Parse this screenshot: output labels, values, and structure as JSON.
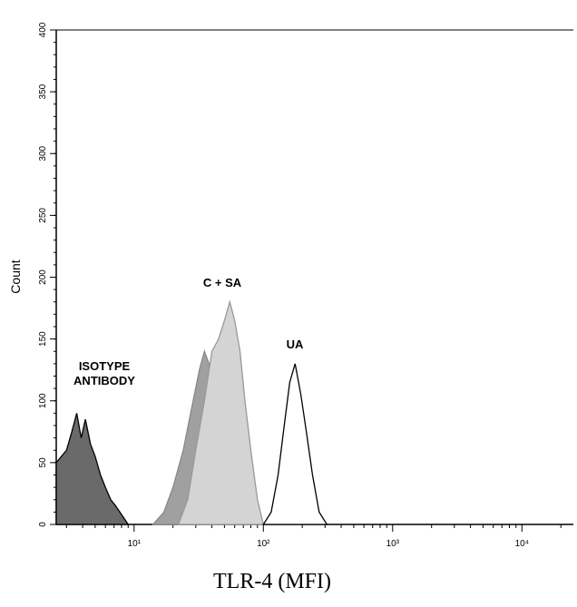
{
  "chart_data": {
    "type": "area",
    "x_label": "TLR-4 (MFI)",
    "y_label": "Count",
    "xscale": "log",
    "xlim": [
      2.5,
      25000
    ],
    "ylim": [
      0,
      400
    ],
    "xticks": [
      {
        "value": 10,
        "label": "10¹"
      },
      {
        "value": 100,
        "label": "10²"
      },
      {
        "value": 1000,
        "label": "10³"
      },
      {
        "value": 10000,
        "label": "10⁴"
      }
    ],
    "yticks": [
      0,
      50,
      100,
      150,
      200,
      250,
      300,
      350,
      400
    ],
    "series": [
      {
        "name": "ISOTYPE ANTIBODY",
        "color": "#6a6a6a",
        "x": [
          2.5,
          3,
          3.3,
          3.6,
          3.9,
          4.2,
          4.6,
          5,
          5.5,
          6,
          6.6,
          7.2,
          8,
          9
        ],
        "values": [
          50,
          60,
          75,
          90,
          70,
          85,
          65,
          55,
          40,
          30,
          20,
          15,
          8,
          0
        ]
      },
      {
        "color": "#a0a0a0",
        "x": [
          14,
          17,
          20,
          24,
          28,
          32,
          35,
          38,
          42,
          46,
          50
        ],
        "values": [
          0,
          10,
          30,
          60,
          95,
          125,
          140,
          130,
          100,
          60,
          0
        ]
      },
      {
        "name": "C + SA",
        "color": "#d4d4d4",
        "x": [
          22,
          26,
          30,
          35,
          40,
          45,
          50,
          55,
          60,
          66,
          72,
          80,
          90,
          100
        ],
        "values": [
          0,
          20,
          60,
          100,
          140,
          150,
          165,
          180,
          165,
          140,
          100,
          60,
          20,
          0
        ]
      },
      {
        "name": "UA",
        "color": "#ffffff",
        "x": [
          100,
          115,
          130,
          145,
          160,
          176,
          195,
          215,
          240,
          270,
          310
        ],
        "values": [
          0,
          10,
          40,
          80,
          115,
          130,
          105,
          75,
          40,
          10,
          0
        ]
      }
    ]
  }
}
